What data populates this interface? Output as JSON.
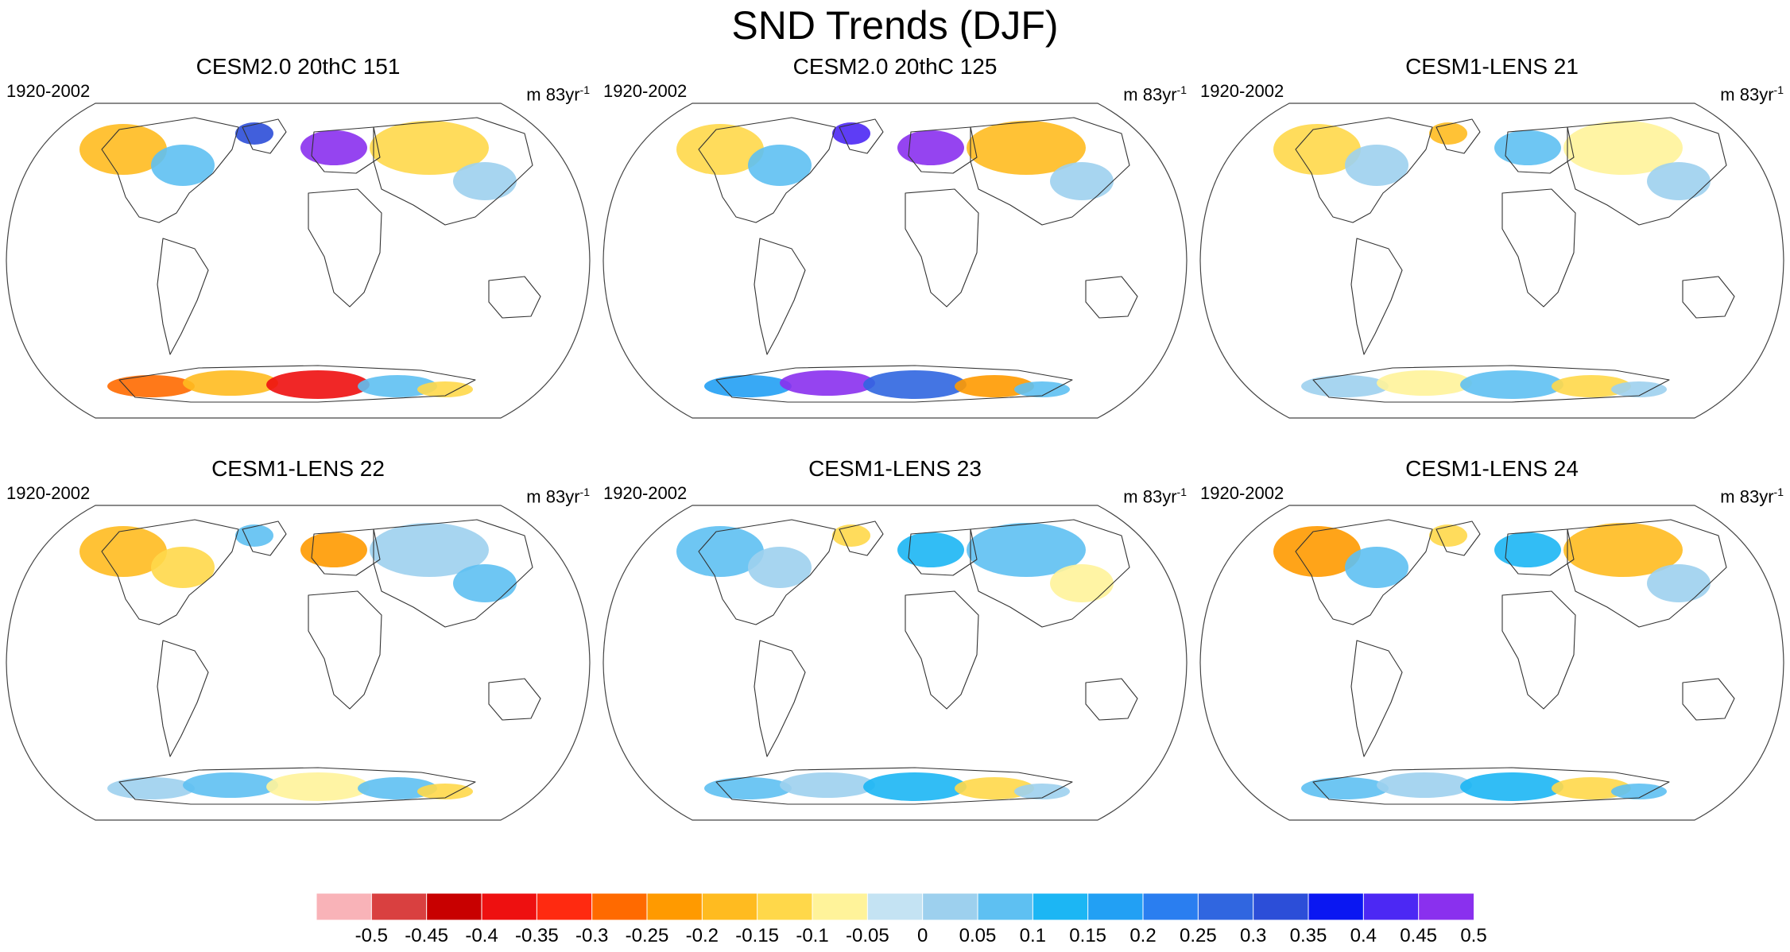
{
  "figure": {
    "title": "SND Trends (DJF)"
  },
  "panels": [
    {
      "title": "CESM2.0 20thC 151",
      "period": "1920-2002",
      "units_base": "m 83yr",
      "units_exp": "-1",
      "north_levels": [
        -0.15,
        0.1,
        0.35,
        0.5,
        -0.1,
        0.05
      ],
      "south_levels": [
        -0.25,
        -0.15,
        -0.35,
        0.1,
        -0.1
      ]
    },
    {
      "title": "CESM2.0 20thC 125",
      "period": "1920-2002",
      "units_base": "m 83yr",
      "units_exp": "-1",
      "north_levels": [
        -0.1,
        0.1,
        0.45,
        0.5,
        -0.15,
        0.05
      ],
      "south_levels": [
        0.2,
        0.5,
        0.3,
        -0.2,
        0.1
      ]
    },
    {
      "title": "CESM1-LENS 21",
      "period": "1920-2002",
      "units_base": "m 83yr",
      "units_exp": "-1",
      "north_levels": [
        -0.1,
        0.05,
        -0.15,
        0.1,
        -0.05,
        0.05
      ],
      "south_levels": [
        0.05,
        -0.05,
        0.1,
        -0.1,
        0.05
      ]
    },
    {
      "title": "CESM1-LENS 22",
      "period": "1920-2002",
      "units_base": "m 83yr",
      "units_exp": "-1",
      "north_levels": [
        -0.15,
        -0.1,
        0.1,
        -0.2,
        0.05,
        0.1
      ],
      "south_levels": [
        0.05,
        0.1,
        -0.05,
        0.1,
        -0.1
      ]
    },
    {
      "title": "CESM1-LENS 23",
      "period": "1920-2002",
      "units_base": "m 83yr",
      "units_exp": "-1",
      "north_levels": [
        0.1,
        0.05,
        -0.1,
        0.15,
        0.1,
        -0.05
      ],
      "south_levels": [
        0.1,
        0.05,
        0.15,
        -0.1,
        0.05
      ]
    },
    {
      "title": "CESM1-LENS 24",
      "period": "1920-2002",
      "units_base": "m 83yr",
      "units_exp": "-1",
      "north_levels": [
        -0.2,
        0.1,
        -0.1,
        0.15,
        -0.15,
        0.05
      ],
      "south_levels": [
        0.1,
        0.05,
        0.15,
        -0.1,
        0.1
      ]
    }
  ],
  "colorbar": {
    "labels": [
      "-0.5",
      "-0.45",
      "-0.4",
      "-0.35",
      "-0.3",
      "-0.25",
      "-0.2",
      "-0.15",
      "-0.1",
      "-0.05",
      "0",
      "0.05",
      "0.1",
      "0.15",
      "0.2",
      "0.25",
      "0.3",
      "0.35",
      "0.4",
      "0.45",
      "0.5"
    ],
    "colors": [
      "#f9b3b8",
      "#d94040",
      "#c80000",
      "#ee1010",
      "#ff2a10",
      "#ff6a00",
      "#ff9a00",
      "#ffbb20",
      "#ffd84a",
      "#fff39a",
      "#c4e3f3",
      "#9dd0ee",
      "#5ec0f2",
      "#1cb6f4",
      "#22a0f4",
      "#2a7ef0",
      "#3066e0",
      "#2c4ed8",
      "#0a17f2",
      "#4c28f4",
      "#8a30ee"
    ]
  }
}
